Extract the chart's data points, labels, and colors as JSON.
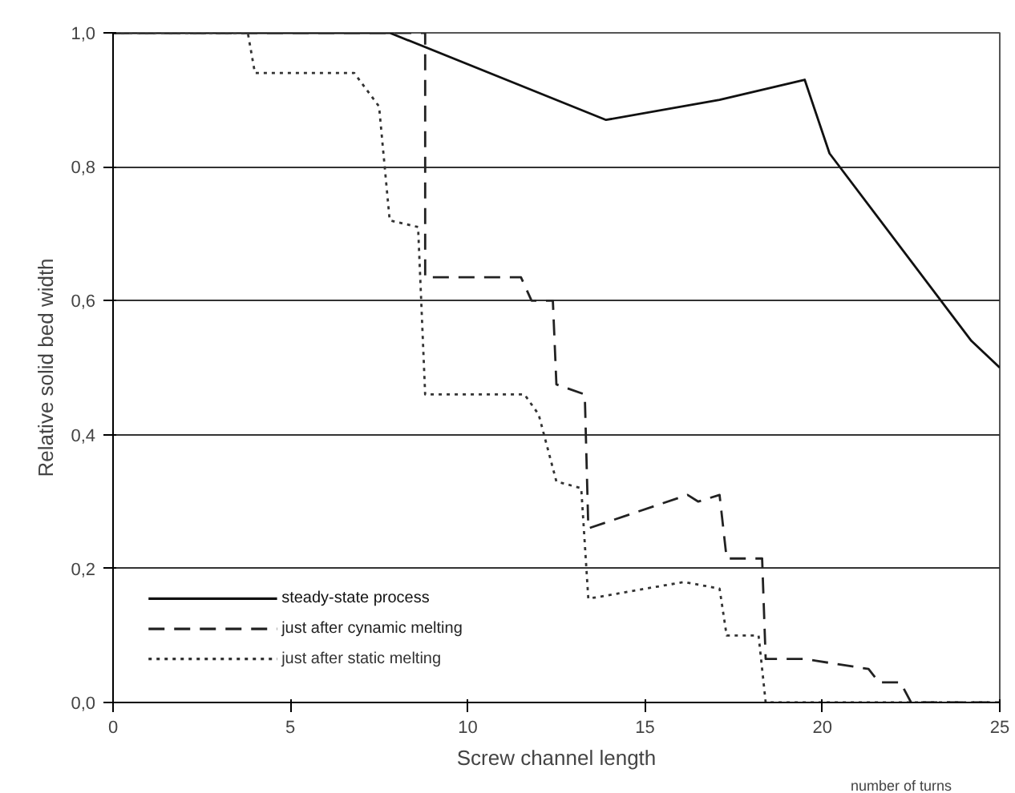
{
  "chart_data": {
    "type": "line",
    "xlabel": "Screw channel length",
    "ylabel": "Relative solid bed width",
    "annotations": [
      "number of turns"
    ],
    "xlim": [
      0,
      25
    ],
    "xticks": [
      0,
      5,
      10,
      15,
      20,
      25
    ],
    "ylim": [
      0,
      1
    ],
    "yticks": [
      {
        "value": 0,
        "label": "0,0"
      },
      {
        "value": 0.2,
        "label": "0,2"
      },
      {
        "value": 0.4,
        "label": "0,4"
      },
      {
        "value": 0.6,
        "label": "0,6"
      },
      {
        "value": 0.8,
        "label": "0,8"
      },
      {
        "value": 1,
        "label": "1,0"
      }
    ],
    "grid": "y",
    "legend": "bottom left",
    "series": [
      {
        "name": "steady-state process",
        "color": "#111111",
        "line_style": "solid",
        "x": [
          0,
          7.8,
          13.9,
          17.1,
          19.5,
          20.2,
          24.2,
          25
        ],
        "values": [
          1,
          1,
          0.87,
          0.9,
          0.93,
          0.82,
          0.54,
          0.5
        ]
      },
      {
        "name": "just after cynamic melting",
        "color": "#222222",
        "line_style": "dashed",
        "x": [
          0,
          8.8,
          8.8,
          11.5,
          11.8,
          12.4,
          12.5,
          13.3,
          13.4,
          16.2,
          16.5,
          17.1,
          17.3,
          18.3,
          18.4,
          19.5,
          21.3,
          21.6,
          22.2,
          22.5,
          25
        ],
        "values": [
          1,
          1,
          0.635,
          0.635,
          0.6,
          0.6,
          0.475,
          0.46,
          0.26,
          0.31,
          0.3,
          0.31,
          0.215,
          0.215,
          0.065,
          0.065,
          0.05,
          0.03,
          0.03,
          0,
          0
        ]
      },
      {
        "name": "just after static melting",
        "color": "#333333",
        "line_style": "dotted",
        "x": [
          0,
          3.8,
          4.0,
          6.8,
          7.5,
          7.8,
          8.6,
          8.8,
          11.6,
          12.0,
          12.5,
          13.2,
          13.4,
          16.1,
          17.1,
          17.3,
          18.2,
          18.4,
          25
        ],
        "values": [
          1,
          1,
          0.94,
          0.94,
          0.89,
          0.72,
          0.71,
          0.46,
          0.46,
          0.43,
          0.33,
          0.32,
          0.155,
          0.18,
          0.17,
          0.1,
          0.1,
          0,
          0
        ]
      }
    ]
  }
}
